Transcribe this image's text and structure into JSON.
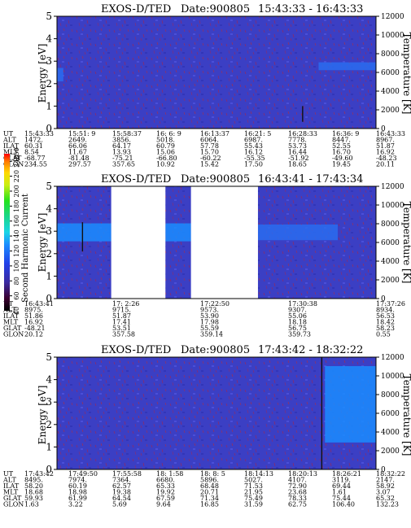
{
  "chart_data": [
    {
      "type": "heatmap",
      "title": "EXOS-D/TED",
      "date": "Date:900805",
      "time_range": "15:43:33 - 16:43:33",
      "ylabel": "Energy [eV]",
      "y2label": "Temperature [K]",
      "ylim": [
        0,
        5
      ],
      "yticks": [
        0,
        1,
        2,
        3,
        4,
        5
      ],
      "y2lim": [
        0,
        12000
      ],
      "y2ticks": [
        0,
        2000,
        4000,
        6000,
        8000,
        10000,
        12000
      ],
      "data_gaps": [],
      "bright_band": {
        "x_start": 0.82,
        "x_end": 1.0,
        "y_low": 2.6,
        "y_high": 2.95,
        "color": "#2a6cf0"
      },
      "left_band": {
        "x_start": 0.0,
        "x_end": 0.02,
        "y_low": 2.1,
        "y_high": 2.7,
        "color": "#2a6cf0"
      },
      "spikes": [
        {
          "x": 0.77,
          "y_low": 0.3,
          "y_high": 1.0
        }
      ],
      "ephemeris": {
        "labels": [
          "UT",
          "ALT",
          "ILAT",
          "MLT",
          "GLAT",
          "GLON"
        ],
        "columns": [
          [
            "15:43:33",
            "1472.",
            "60.31",
            "8.54",
            "-68.77",
            "234.55"
          ],
          [
            "15:51: 9",
            "2649.",
            "66.06",
            "11.67",
            "-81.48",
            "297.57"
          ],
          [
            "15:58:37",
            "3856.",
            "64.17",
            "13.93",
            "-75.21",
            "357.65"
          ],
          [
            "16: 6: 9",
            "5018.",
            "60.79",
            "15.06",
            "-66.80",
            "10.92"
          ],
          [
            "16:13:37",
            "6064.",
            "57.78",
            "15.70",
            "-60.22",
            "15.42"
          ],
          [
            "16:21: 5",
            "6987.",
            "55.43",
            "16.12",
            "-55.35",
            "17.50"
          ],
          [
            "16:28:33",
            "7778.",
            "53.73",
            "16.44",
            "-51.92",
            "18.65"
          ],
          [
            "16:36: 9",
            "8447.",
            "52.55",
            "16.70",
            "-49.60",
            "19.45"
          ],
          [
            "16:43:33",
            "8967.",
            "51.87",
            "16.92",
            "-48.23",
            "20.11"
          ]
        ]
      }
    },
    {
      "type": "heatmap",
      "title": "EXOS-D/TED",
      "date": "Date:900805",
      "time_range": "16:43:41 - 17:43:34",
      "ylabel": "Energy [eV]",
      "y2label": "Temperature [K]",
      "ylim": [
        0,
        5
      ],
      "yticks": [
        0,
        1,
        2,
        3,
        4,
        5
      ],
      "y2lim": [
        0,
        12000
      ],
      "y2ticks": [
        0,
        2000,
        4000,
        6000,
        8000,
        10000,
        12000
      ],
      "data_gaps": [
        [
          0.17,
          0.34
        ],
        [
          0.42,
          0.63
        ]
      ],
      "bright_band": {
        "x_start": 0.0,
        "x_end": 0.17,
        "y_low": 2.55,
        "y_high": 3.35,
        "color": "#1b8cff"
      },
      "band2": {
        "x_start": 0.34,
        "x_end": 0.42,
        "y_low": 2.55,
        "y_high": 3.35,
        "color": "#1b8cff"
      },
      "band3": {
        "x_start": 0.63,
        "x_end": 0.88,
        "y_low": 2.6,
        "y_high": 3.3,
        "color": "#2a6cf0"
      },
      "spikes": [
        {
          "x": 0.08,
          "y_low": 2.1,
          "y_high": 3.4
        }
      ],
      "colorbar": {
        "label": "Second Harmonic Current",
        "ticks": [
          40,
          60,
          80,
          100,
          120,
          140,
          160,
          180,
          200,
          220,
          240,
          250
        ],
        "range": [
          40,
          250
        ]
      },
      "ephemeris": {
        "labels": [
          "UT",
          "ALT",
          "ILAT",
          "MLT",
          "GLAT",
          "GLON"
        ],
        "columns": [
          [
            "16:43:41",
            "8975.",
            "51.86",
            "16.92",
            "-48.21",
            "20.12"
          ],
          [
            "17: 2:26",
            "9715.",
            "51.87",
            "17.41",
            "53.51",
            "357.58"
          ],
          [
            "17:22:50",
            "9573.",
            "53.90",
            "17.98",
            "55.59",
            "359.14"
          ],
          [
            "17:30:38",
            "9307.",
            "55.06",
            "18.18",
            "56.75",
            "359.73"
          ],
          [
            "17:37:26",
            "8934.",
            "56.53",
            "18.42",
            "58.23",
            "0.55"
          ]
        ]
      }
    },
    {
      "type": "heatmap",
      "title": "EXOS-D/TED",
      "date": "Date:900805",
      "time_range": "17:43:42 - 18:32:22",
      "ylabel": "Energy [eV]",
      "y2label": "Temperature [K]",
      "ylim": [
        0,
        5
      ],
      "yticks": [
        0,
        1,
        2,
        3,
        4,
        5
      ],
      "y2lim": [
        0,
        12000
      ],
      "y2ticks": [
        0,
        2000,
        4000,
        6000,
        8000,
        10000,
        12000
      ],
      "data_gaps": [],
      "bright_band": {
        "x_start": 0.84,
        "x_end": 1.0,
        "y_low": 1.2,
        "y_high": 4.6,
        "color": "#1b8cff"
      },
      "spikes": [
        {
          "x": 0.83,
          "y_low": 0.0,
          "y_high": 5.0
        }
      ],
      "ephemeris": {
        "labels": [
          "UT",
          "ALT",
          "ILAT",
          "MLT",
          "GLAT",
          "GLON"
        ],
        "columns": [
          [
            "17:43:42",
            "8495.",
            "58.20",
            "18.68",
            "59.93",
            "1.63"
          ],
          [
            "17:49:50",
            "7974.",
            "60.19",
            "18.98",
            "61.99",
            "3.22"
          ],
          [
            "17:55:58",
            "7364.",
            "62.57",
            "19.38",
            "64.54",
            "5.69"
          ],
          [
            "18: 1:58",
            "6680.",
            "65.33",
            "19.92",
            "67.59",
            "9.64"
          ],
          [
            "18: 8: 5",
            "5896.",
            "68.48",
            "20.71",
            "71.34",
            "16.85"
          ],
          [
            "18:14:13",
            "5027.",
            "71.53",
            "21.95",
            "75.49",
            "31.59"
          ],
          [
            "18:20:13",
            "4107.",
            "72.90",
            "23.68",
            "78.33",
            "62.75"
          ],
          [
            "18:26:21",
            "3119.",
            "69.44",
            "1.61",
            "75.44",
            "106.40"
          ],
          [
            "18:32:22",
            "2147.",
            "58.92",
            "3.07",
            "65.32",
            "132.23"
          ]
        ]
      }
    }
  ]
}
